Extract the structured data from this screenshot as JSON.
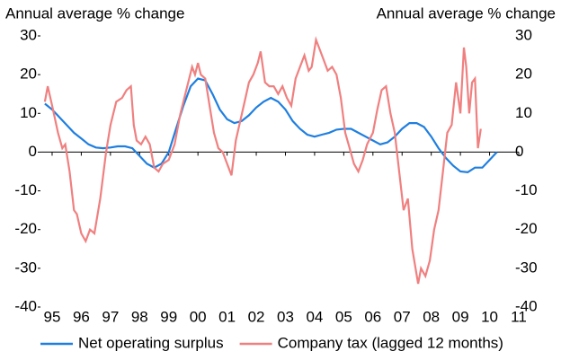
{
  "chart_data": {
    "type": "line",
    "y_label": "Annual average % change",
    "y2_label": "Annual average % change",
    "xlim": [
      1994.6,
      2011.0
    ],
    "xticks": [
      {
        "value": 1995,
        "label": "95"
      },
      {
        "value": 1996,
        "label": "96"
      },
      {
        "value": 1997,
        "label": "97"
      },
      {
        "value": 1998,
        "label": "98"
      },
      {
        "value": 1999,
        "label": "99"
      },
      {
        "value": 2000,
        "label": "00"
      },
      {
        "value": 2001,
        "label": "01"
      },
      {
        "value": 2002,
        "label": "02"
      },
      {
        "value": 2003,
        "label": "03"
      },
      {
        "value": 2004,
        "label": "04"
      },
      {
        "value": 2005,
        "label": "05"
      },
      {
        "value": 2006,
        "label": "06"
      },
      {
        "value": 2007,
        "label": "07"
      },
      {
        "value": 2008,
        "label": "08"
      },
      {
        "value": 2009,
        "label": "09"
      },
      {
        "value": 2010,
        "label": "10"
      },
      {
        "value": 2011,
        "label": "11"
      }
    ],
    "ylim": [
      -40,
      30
    ],
    "yticks": [
      -40,
      -30,
      -20,
      -10,
      0,
      10,
      20,
      30
    ],
    "y2lim": [
      -40,
      30
    ],
    "y2ticks": [
      -40,
      -30,
      -20,
      -10,
      0,
      10,
      20,
      30
    ],
    "legend": "bottom",
    "series": [
      {
        "name": "Net operating surplus",
        "color": "#1f7fe0",
        "x": [
          1994.75,
          1995,
          1995.25,
          1995.5,
          1995.75,
          1996,
          1996.25,
          1996.5,
          1996.75,
          1997,
          1997.25,
          1997.5,
          1997.75,
          1998,
          1998.25,
          1998.5,
          1998.75,
          1999,
          1999.25,
          1999.5,
          1999.75,
          2000,
          2000.25,
          2000.5,
          2000.75,
          2001,
          2001.25,
          2001.5,
          2001.75,
          2002,
          2002.25,
          2002.5,
          2002.75,
          2003,
          2003.25,
          2003.5,
          2003.75,
          2004,
          2004.25,
          2004.5,
          2004.75,
          2005,
          2005.25,
          2005.5,
          2005.75,
          2006,
          2006.25,
          2006.5,
          2006.75,
          2007,
          2007.25,
          2007.5,
          2007.75,
          2008,
          2008.25,
          2008.5,
          2008.75,
          2009,
          2009.25,
          2009.5,
          2009.75,
          2010,
          2010.25
        ],
        "values": [
          12.5,
          11,
          9,
          7,
          5,
          3.5,
          2,
          1.2,
          1,
          1.2,
          1.5,
          1.5,
          1,
          -1,
          -3,
          -4,
          -3,
          0,
          6,
          12,
          17,
          19,
          18.5,
          15,
          11,
          8.5,
          7.5,
          8,
          9.5,
          11.5,
          13,
          14,
          13,
          11,
          8,
          6,
          4.5,
          4,
          4.5,
          5,
          5.8,
          6,
          6,
          5,
          4,
          3,
          2,
          2.5,
          4,
          6,
          7.5,
          7.5,
          6.5,
          4,
          1,
          -1.5,
          -3.5,
          -5,
          -5.2,
          -4,
          -4,
          -2,
          0
        ]
      },
      {
        "name": "Company tax (lagged 12 months)",
        "color": "#f08080",
        "axis": "y2",
        "x": [
          1994.75,
          1994.85,
          1995,
          1995.2,
          1995.35,
          1995.45,
          1995.6,
          1995.75,
          1995.85,
          1996,
          1996.15,
          1996.3,
          1996.45,
          1996.65,
          1996.85,
          1997,
          1997.2,
          1997.4,
          1997.55,
          1997.7,
          1997.8,
          1997.9,
          1998.05,
          1998.2,
          1998.35,
          1998.5,
          1998.65,
          1998.8,
          1999,
          1999.2,
          1999.4,
          1999.6,
          1999.8,
          1999.9,
          2000,
          2000.1,
          2000.25,
          2000.4,
          2000.55,
          2000.7,
          2000.85,
          2001,
          2001.15,
          2001.3,
          2001.45,
          2001.6,
          2001.75,
          2001.9,
          2002.05,
          2002.15,
          2002.3,
          2002.45,
          2002.6,
          2002.75,
          2002.9,
          2003.05,
          2003.2,
          2003.35,
          2003.5,
          2003.65,
          2003.8,
          2003.9,
          2004.05,
          2004.15,
          2004.3,
          2004.45,
          2004.6,
          2004.75,
          2004.9,
          2005.05,
          2005.2,
          2005.35,
          2005.5,
          2005.65,
          2005.8,
          2006,
          2006.15,
          2006.3,
          2006.45,
          2006.6,
          2006.75,
          2006.9,
          2007.05,
          2007.2,
          2007.35,
          2007.55,
          2007.65,
          2007.8,
          2007.95,
          2008.1,
          2008.25,
          2008.4,
          2008.55,
          2008.7,
          2008.85,
          2009,
          2009.12,
          2009.2,
          2009.3,
          2009.4,
          2009.5,
          2009.6,
          2009.7
        ],
        "values": [
          13,
          17,
          12,
          5,
          1,
          2,
          -5,
          -15,
          -16,
          -21,
          -23,
          -20,
          -21,
          -12,
          0,
          7,
          13,
          14,
          16,
          17,
          7,
          3,
          2,
          4,
          2,
          -4,
          -5,
          -3,
          -2,
          2,
          10,
          16,
          22,
          20,
          23,
          20,
          19,
          12,
          5,
          1,
          0,
          -3,
          -6,
          3,
          8,
          13,
          18,
          20,
          23,
          26,
          18,
          17,
          17,
          15,
          17,
          14,
          12,
          19,
          22,
          25,
          21,
          22,
          29,
          27,
          24,
          21,
          22,
          20,
          14,
          5,
          1,
          -3,
          -5,
          -2,
          2,
          5,
          11,
          16,
          17,
          10,
          5,
          -5,
          -15,
          -12,
          -25,
          -34,
          -30,
          -32,
          -28,
          -20,
          -15,
          -5,
          5,
          7,
          18,
          10,
          27,
          22,
          10,
          18,
          19,
          1,
          6
        ]
      }
    ]
  }
}
